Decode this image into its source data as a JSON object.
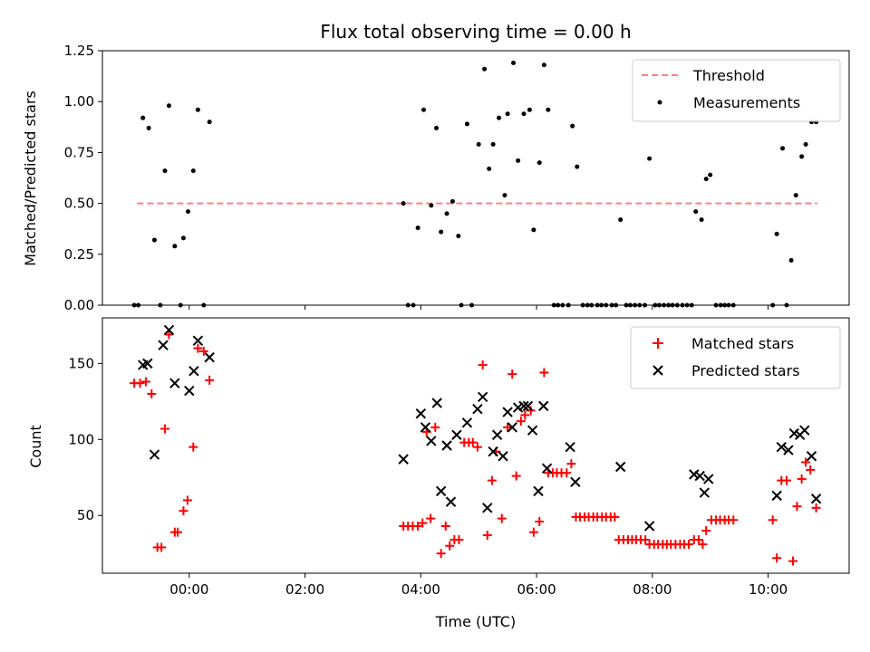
{
  "chart_data": [
    {
      "type": "scatter",
      "title": "Flux total observing time = 0.00 h",
      "ylabel": "Matched/Predicted stars",
      "xlabel": "",
      "xlim": [
        -1.5,
        11.4
      ],
      "ylim": [
        0,
        1.25
      ],
      "x_tick_labels": [
        "00:00",
        "02:00",
        "04:00",
        "06:00",
        "08:00",
        "10:00"
      ],
      "x_tick_values": [
        0,
        2,
        4,
        6,
        8,
        10
      ],
      "y_tick_labels": [
        "0.00",
        "0.25",
        "0.50",
        "0.75",
        "1.00",
        "1.25"
      ],
      "y_tick_values": [
        0,
        0.25,
        0.5,
        0.75,
        1.0,
        1.25
      ],
      "legend_position": "top-right",
      "threshold": {
        "name": "Threshold",
        "value": 0.5,
        "x": [
          -0.9,
          10.85
        ],
        "color": "#ff7f7f",
        "style": "dashed"
      },
      "series": [
        {
          "name": "Measurements",
          "color": "#000000",
          "marker": "dot",
          "points": [
            [
              -0.95,
              0.0
            ],
            [
              -0.88,
              0.0
            ],
            [
              -0.8,
              0.92
            ],
            [
              -0.7,
              0.87
            ],
            [
              -0.6,
              0.32
            ],
            [
              -0.5,
              0.0
            ],
            [
              -0.42,
              0.66
            ],
            [
              -0.35,
              0.98
            ],
            [
              -0.25,
              0.29
            ],
            [
              -0.15,
              0.0
            ],
            [
              -0.1,
              0.33
            ],
            [
              -0.02,
              0.46
            ],
            [
              0.07,
              0.66
            ],
            [
              0.15,
              0.96
            ],
            [
              0.25,
              0.0
            ],
            [
              0.35,
              0.9
            ],
            [
              3.7,
              0.5
            ],
            [
              3.78,
              0.0
            ],
            [
              3.87,
              0.0
            ],
            [
              3.95,
              0.38
            ],
            [
              4.05,
              0.96
            ],
            [
              4.18,
              0.49
            ],
            [
              4.27,
              0.87
            ],
            [
              4.35,
              0.36
            ],
            [
              4.45,
              0.45
            ],
            [
              4.55,
              0.51
            ],
            [
              4.65,
              0.34
            ],
            [
              4.7,
              0.0
            ],
            [
              4.8,
              0.89
            ],
            [
              4.88,
              0.0
            ],
            [
              5.0,
              0.79
            ],
            [
              5.1,
              1.16
            ],
            [
              5.18,
              0.67
            ],
            [
              5.25,
              0.79
            ],
            [
              5.35,
              0.92
            ],
            [
              5.45,
              0.54
            ],
            [
              5.5,
              0.94
            ],
            [
              5.6,
              1.19
            ],
            [
              5.68,
              0.71
            ],
            [
              5.78,
              0.94
            ],
            [
              5.88,
              0.96
            ],
            [
              5.95,
              0.37
            ],
            [
              6.05,
              0.7
            ],
            [
              6.13,
              1.18
            ],
            [
              6.2,
              0.96
            ],
            [
              6.3,
              0.0
            ],
            [
              6.37,
              0.0
            ],
            [
              6.45,
              0.0
            ],
            [
              6.55,
              0.0
            ],
            [
              6.62,
              0.88
            ],
            [
              6.7,
              0.68
            ],
            [
              6.8,
              0.0
            ],
            [
              6.88,
              0.0
            ],
            [
              6.95,
              0.0
            ],
            [
              7.05,
              0.0
            ],
            [
              7.12,
              0.0
            ],
            [
              7.2,
              0.0
            ],
            [
              7.3,
              0.0
            ],
            [
              7.37,
              0.0
            ],
            [
              7.45,
              0.42
            ],
            [
              7.55,
              0.0
            ],
            [
              7.62,
              0.0
            ],
            [
              7.7,
              0.0
            ],
            [
              7.78,
              0.0
            ],
            [
              7.87,
              0.0
            ],
            [
              7.95,
              0.72
            ],
            [
              8.05,
              0.0
            ],
            [
              8.12,
              0.0
            ],
            [
              8.2,
              0.0
            ],
            [
              8.28,
              0.0
            ],
            [
              8.35,
              0.0
            ],
            [
              8.43,
              0.0
            ],
            [
              8.52,
              0.0
            ],
            [
              8.6,
              0.0
            ],
            [
              8.68,
              0.0
            ],
            [
              8.75,
              0.46
            ],
            [
              8.85,
              0.42
            ],
            [
              8.93,
              0.62
            ],
            [
              9.0,
              0.64
            ],
            [
              9.1,
              0.0
            ],
            [
              9.18,
              0.0
            ],
            [
              9.25,
              0.0
            ],
            [
              9.32,
              0.0
            ],
            [
              9.4,
              0.0
            ],
            [
              10.08,
              0.0
            ],
            [
              10.15,
              0.35
            ],
            [
              10.25,
              0.77
            ],
            [
              10.32,
              0.0
            ],
            [
              10.4,
              0.22
            ],
            [
              10.48,
              0.54
            ],
            [
              10.58,
              0.73
            ],
            [
              10.65,
              0.79
            ],
            [
              10.75,
              0.9
            ],
            [
              10.83,
              0.9
            ]
          ]
        }
      ]
    },
    {
      "type": "scatter",
      "title": "",
      "xlabel": "Time (UTC)",
      "ylabel": "Count",
      "xlim": [
        -1.5,
        11.4
      ],
      "ylim": [
        12,
        180
      ],
      "x_tick_labels": [
        "00:00",
        "02:00",
        "04:00",
        "06:00",
        "08:00",
        "10:00"
      ],
      "x_tick_values": [
        0,
        2,
        4,
        6,
        8,
        10
      ],
      "y_tick_labels": [
        "50",
        "100",
        "150"
      ],
      "y_tick_values": [
        50,
        100,
        150
      ],
      "legend_position": "top-right",
      "series": [
        {
          "name": "Matched stars",
          "color": "#ff0000",
          "marker": "plus",
          "points": [
            [
              -0.95,
              137
            ],
            [
              -0.85,
              137
            ],
            [
              -0.75,
              138
            ],
            [
              -0.65,
              130
            ],
            [
              -0.55,
              29
            ],
            [
              -0.48,
              29
            ],
            [
              -0.42,
              107
            ],
            [
              -0.35,
              169
            ],
            [
              -0.25,
              39
            ],
            [
              -0.2,
              39
            ],
            [
              -0.1,
              53
            ],
            [
              -0.03,
              60
            ],
            [
              0.07,
              95
            ],
            [
              0.15,
              160
            ],
            [
              0.25,
              158
            ],
            [
              0.35,
              139
            ],
            [
              3.7,
              43
            ],
            [
              3.78,
              43
            ],
            [
              3.86,
              43
            ],
            [
              3.95,
              43
            ],
            [
              4.03,
              45
            ],
            [
              4.1,
              105
            ],
            [
              4.17,
              48
            ],
            [
              4.25,
              108
            ],
            [
              4.35,
              25
            ],
            [
              4.43,
              43
            ],
            [
              4.5,
              30
            ],
            [
              4.58,
              34
            ],
            [
              4.66,
              34
            ],
            [
              4.75,
              98
            ],
            [
              4.83,
              98
            ],
            [
              4.9,
              98
            ],
            [
              4.98,
              95
            ],
            [
              5.07,
              149
            ],
            [
              5.15,
              37
            ],
            [
              5.23,
              73
            ],
            [
              5.3,
              92
            ],
            [
              5.4,
              48
            ],
            [
              5.5,
              108
            ],
            [
              5.58,
              143
            ],
            [
              5.65,
              76
            ],
            [
              5.73,
              112
            ],
            [
              5.8,
              116
            ],
            [
              5.9,
              119
            ],
            [
              5.95,
              39
            ],
            [
              6.05,
              46
            ],
            [
              6.13,
              144
            ],
            [
              6.2,
              78
            ],
            [
              6.28,
              78
            ],
            [
              6.35,
              78
            ],
            [
              6.43,
              78
            ],
            [
              6.52,
              78
            ],
            [
              6.6,
              84
            ],
            [
              6.68,
              49
            ],
            [
              6.75,
              49
            ],
            [
              6.83,
              49
            ],
            [
              6.9,
              49
            ],
            [
              6.98,
              49
            ],
            [
              7.05,
              49
            ],
            [
              7.13,
              49
            ],
            [
              7.2,
              49
            ],
            [
              7.28,
              49
            ],
            [
              7.35,
              49
            ],
            [
              7.42,
              34
            ],
            [
              7.5,
              34
            ],
            [
              7.58,
              34
            ],
            [
              7.65,
              34
            ],
            [
              7.72,
              34
            ],
            [
              7.8,
              34
            ],
            [
              7.88,
              34
            ],
            [
              7.95,
              31
            ],
            [
              8.03,
              31
            ],
            [
              8.1,
              31
            ],
            [
              8.18,
              31
            ],
            [
              8.25,
              31
            ],
            [
              8.32,
              31
            ],
            [
              8.4,
              31
            ],
            [
              8.48,
              31
            ],
            [
              8.55,
              31
            ],
            [
              8.63,
              31
            ],
            [
              8.72,
              34
            ],
            [
              8.8,
              34
            ],
            [
              8.87,
              31
            ],
            [
              8.93,
              40
            ],
            [
              9.02,
              47
            ],
            [
              9.1,
              47
            ],
            [
              9.17,
              47
            ],
            [
              9.25,
              47
            ],
            [
              9.32,
              47
            ],
            [
              9.4,
              47
            ],
            [
              10.08,
              47
            ],
            [
              10.15,
              22
            ],
            [
              10.23,
              73
            ],
            [
              10.32,
              73
            ],
            [
              10.43,
              20
            ],
            [
              10.5,
              56
            ],
            [
              10.58,
              74
            ],
            [
              10.65,
              85
            ],
            [
              10.73,
              80
            ],
            [
              10.83,
              55
            ]
          ]
        },
        {
          "name": "Predicted stars",
          "color": "#000000",
          "marker": "x",
          "points": [
            [
              -0.8,
              149
            ],
            [
              -0.72,
              150
            ],
            [
              -0.6,
              90
            ],
            [
              -0.45,
              162
            ],
            [
              -0.35,
              172
            ],
            [
              -0.25,
              137
            ],
            [
              0.0,
              132
            ],
            [
              0.08,
              145
            ],
            [
              0.15,
              165
            ],
            [
              0.35,
              154
            ],
            [
              3.7,
              87
            ],
            [
              4.0,
              117
            ],
            [
              4.08,
              108
            ],
            [
              4.18,
              99
            ],
            [
              4.28,
              124
            ],
            [
              4.35,
              66
            ],
            [
              4.45,
              96
            ],
            [
              4.52,
              59
            ],
            [
              4.62,
              103
            ],
            [
              4.8,
              111
            ],
            [
              4.98,
              120
            ],
            [
              5.07,
              128
            ],
            [
              5.15,
              55
            ],
            [
              5.25,
              92
            ],
            [
              5.32,
              103
            ],
            [
              5.42,
              89
            ],
            [
              5.5,
              118
            ],
            [
              5.58,
              108
            ],
            [
              5.68,
              121
            ],
            [
              5.78,
              122
            ],
            [
              5.85,
              122
            ],
            [
              5.93,
              106
            ],
            [
              6.03,
              66
            ],
            [
              6.12,
              122
            ],
            [
              6.18,
              81
            ],
            [
              6.58,
              95
            ],
            [
              6.67,
              72
            ],
            [
              7.45,
              82
            ],
            [
              7.95,
              43
            ],
            [
              8.72,
              77
            ],
            [
              8.82,
              76
            ],
            [
              8.9,
              65
            ],
            [
              8.97,
              74
            ],
            [
              10.15,
              63
            ],
            [
              10.23,
              95
            ],
            [
              10.35,
              93
            ],
            [
              10.45,
              104
            ],
            [
              10.55,
              103
            ],
            [
              10.63,
              106
            ],
            [
              10.75,
              89
            ],
            [
              10.83,
              61
            ]
          ]
        }
      ]
    }
  ]
}
